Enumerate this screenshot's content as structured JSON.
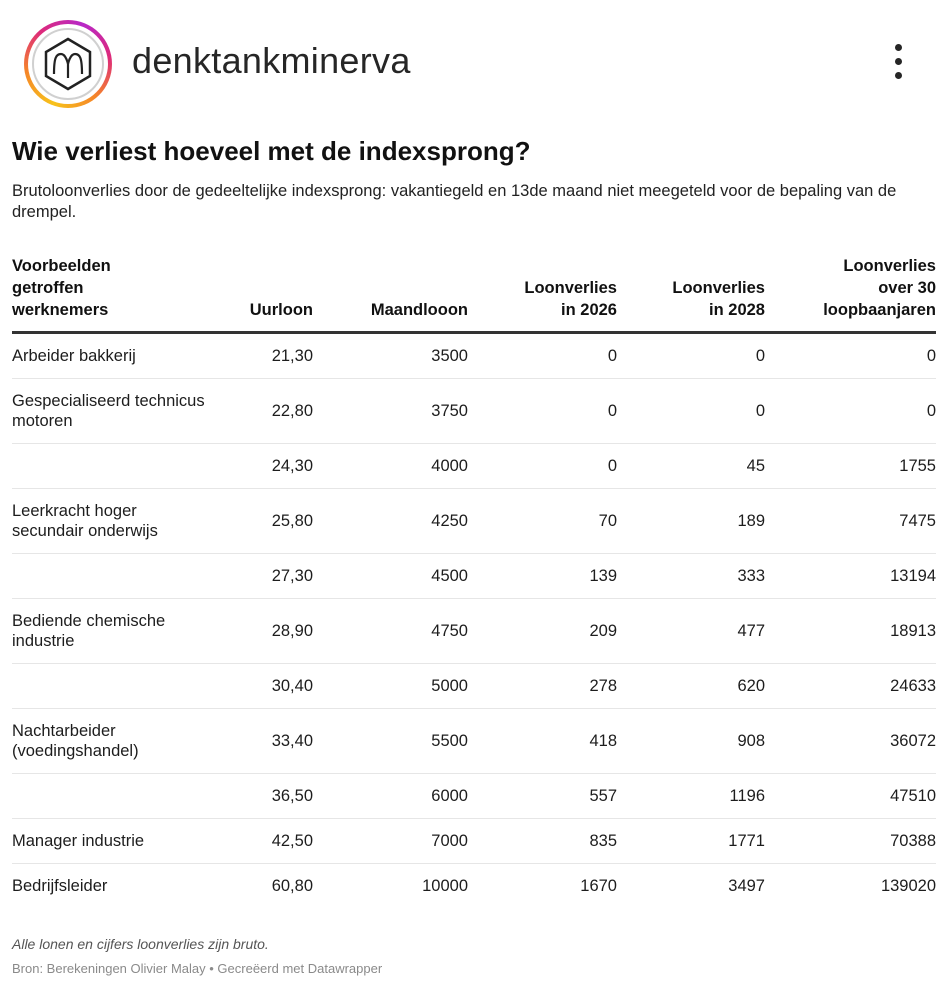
{
  "header": {
    "username": "denktankminerva",
    "avatar_icon": "minerva-logo-icon",
    "more_icon": "more-vertical-icon"
  },
  "chart": {
    "title": "Wie verliest hoeveel met de indexsprong?",
    "description": "Brutoloonverlies door de gedeeltelijke indexsprong: vakantiegeld en 13de maand niet meegeteld voor de bepaling van de drempel.",
    "columns": [
      "Voorbeelden\ngetroffen\nwerknemers",
      "Uurloon",
      "Maandlooon",
      "Loonverlies\nin 2026",
      "Loonverlies\nin 2028",
      "Loonverlies\nover 30\nloopbaanjaren"
    ],
    "rows": [
      [
        "Arbeider bakkerij",
        "21,30",
        "3500",
        "0",
        "0",
        "0"
      ],
      [
        "Gespecialiseerd technicus motoren",
        "22,80",
        "3750",
        "0",
        "0",
        "0"
      ],
      [
        "",
        "24,30",
        "4000",
        "0",
        "45",
        "1755"
      ],
      [
        "Leerkracht hoger secundair onderwijs",
        "25,80",
        "4250",
        "70",
        "189",
        "7475"
      ],
      [
        "",
        "27,30",
        "4500",
        "139",
        "333",
        "13194"
      ],
      [
        "Bediende chemische industrie",
        "28,90",
        "4750",
        "209",
        "477",
        "18913"
      ],
      [
        "",
        "30,40",
        "5000",
        "278",
        "620",
        "24633"
      ],
      [
        "Nachtarbeider (voedingshandel)",
        "33,40",
        "5500",
        "418",
        "908",
        "36072"
      ],
      [
        "",
        "36,50",
        "6000",
        "557",
        "1196",
        "47510"
      ],
      [
        "Manager industrie",
        "42,50",
        "7000",
        "835",
        "1771",
        "70388"
      ],
      [
        "Bedrijfsleider",
        "60,80",
        "10000",
        "1670",
        "3497",
        "139020"
      ]
    ],
    "note": "Alle lonen en cijfers loonverlies zijn bruto.",
    "source": "Bron: Berekeningen Olivier Malay • Gecreëerd met Datawrapper"
  }
}
